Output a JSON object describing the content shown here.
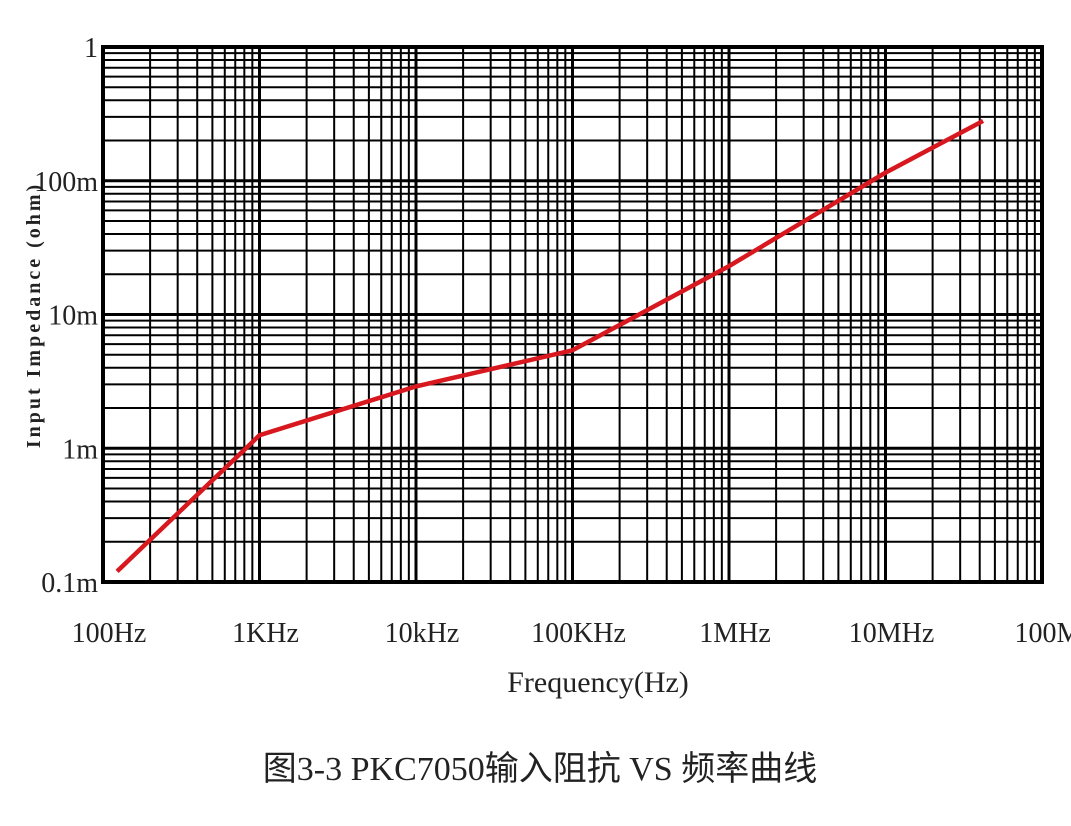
{
  "chart_data": {
    "type": "line",
    "title": "图3-3 PKC7050输入阻抗 VS 频率曲线",
    "x_label": "Frequency(Hz)",
    "y_label": "Input Impedance (ohm)",
    "log_x": true,
    "log_y": true,
    "grid": true,
    "minor_grid": true,
    "xlim": [
      100,
      100000000
    ],
    "ylim": [
      0.0001,
      1
    ],
    "xticks": [
      {
        "value": 100,
        "label": "100Hz"
      },
      {
        "value": 1000,
        "label": "1KHz"
      },
      {
        "value": 10000,
        "label": "10kHz"
      },
      {
        "value": 100000,
        "label": "100KHz"
      },
      {
        "value": 1000000,
        "label": "1MHz"
      },
      {
        "value": 10000000,
        "label": "10MHz"
      },
      {
        "value": 100000000,
        "label": "100M"
      }
    ],
    "yticks": [
      {
        "value": 0.0001,
        "label": "0.1m"
      },
      {
        "value": 0.001,
        "label": "1m"
      },
      {
        "value": 0.01,
        "label": "10m"
      },
      {
        "value": 0.1,
        "label": "100m"
      },
      1
    ],
    "series": [
      {
        "color": "#d7191f",
        "x": [
          123,
          1000,
          10000,
          100000,
          1000000,
          10000000,
          42000000
        ],
        "values": [
          0.00012,
          0.00125,
          0.0029,
          0.0054,
          0.023,
          0.115,
          0.28
        ]
      }
    ]
  }
}
